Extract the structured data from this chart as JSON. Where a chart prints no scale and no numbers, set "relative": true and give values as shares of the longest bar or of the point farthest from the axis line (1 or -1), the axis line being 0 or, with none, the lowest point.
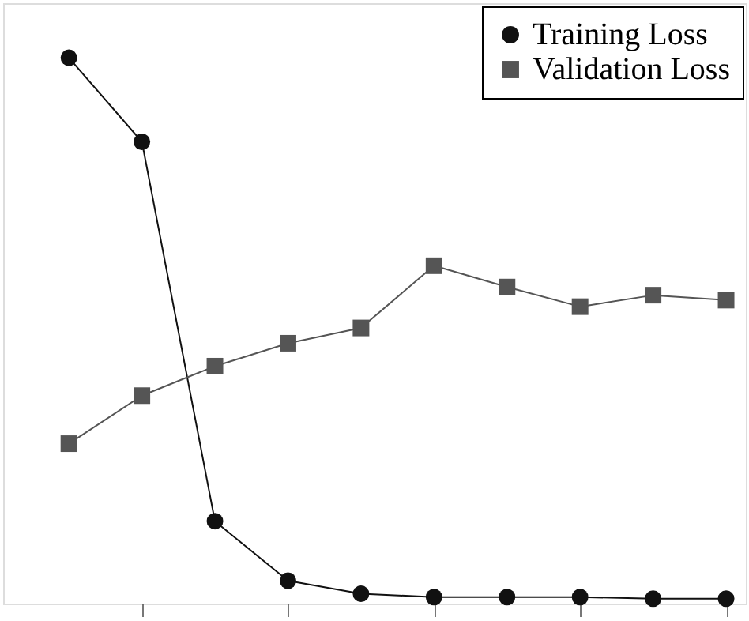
{
  "chart_data": {
    "type": "line",
    "relative": true,
    "categories": [
      null,
      null,
      null,
      null,
      null,
      null,
      null,
      null,
      null,
      null
    ],
    "series": [
      {
        "name": "Training Loss",
        "color": "#111111",
        "marker": "circle",
        "values": [
          1,
          0.846,
          0.151,
          0.042,
          0.018,
          0.012,
          0.012,
          0.012,
          0.009,
          0.009
        ]
      },
      {
        "name": "Validation Loss",
        "color": "#555555",
        "marker": "square",
        "values": [
          0.293,
          0.381,
          0.435,
          0.477,
          0.505,
          0.619,
          0.58,
          0.544,
          0.565,
          0.556
        ]
      }
    ],
    "legend": "top right",
    "grid": false,
    "line_style": "solid"
  }
}
